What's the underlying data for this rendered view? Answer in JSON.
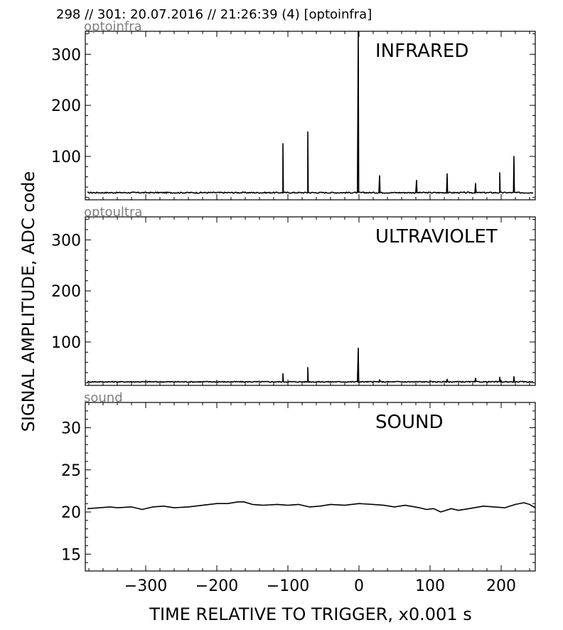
{
  "header": {
    "title": "298 // 301:   20.07.2016 // 21:26:39 (4)  [optoinfra]"
  },
  "colors": {
    "trace": "#000000",
    "channel_label": "#808080",
    "frame": "#000000"
  },
  "chart_data": [
    {
      "type": "line",
      "channel": "optoinfra",
      "panel_label": "INFRARED",
      "xlim": [
        -385,
        248
      ],
      "ylim": [
        15,
        345
      ],
      "yticks": [
        100,
        200,
        300
      ],
      "baseline": 29,
      "noise": 1.2,
      "grid": false,
      "spikes": [
        {
          "x": -107,
          "y": 125
        },
        {
          "x": -72,
          "y": 148
        },
        {
          "x": -1,
          "y": 345
        },
        {
          "x": 29,
          "y": 62
        },
        {
          "x": 81,
          "y": 53
        },
        {
          "x": 124,
          "y": 66
        },
        {
          "x": 164,
          "y": 47
        },
        {
          "x": 198,
          "y": 68
        },
        {
          "x": 218,
          "y": 100
        }
      ]
    },
    {
      "type": "line",
      "channel": "optoultra",
      "panel_label": "ULTRAVIOLET",
      "xlim": [
        -385,
        248
      ],
      "ylim": [
        15,
        345
      ],
      "yticks": [
        100,
        200,
        300
      ],
      "baseline": 22,
      "noise": 1.0,
      "grid": false,
      "spikes": [
        {
          "x": -107,
          "y": 38
        },
        {
          "x": -72,
          "y": 50
        },
        {
          "x": -1,
          "y": 88
        },
        {
          "x": 29,
          "y": 26
        },
        {
          "x": 124,
          "y": 27
        },
        {
          "x": 164,
          "y": 29
        },
        {
          "x": 198,
          "y": 31
        },
        {
          "x": 218,
          "y": 32
        }
      ]
    },
    {
      "type": "line",
      "channel": "sound",
      "panel_label": "SOUND",
      "xlim": [
        -385,
        248
      ],
      "ylim": [
        13,
        33
      ],
      "yticks": [
        15,
        20,
        25,
        30
      ],
      "grid": false,
      "x": [
        -382,
        -365,
        -350,
        -340,
        -320,
        -305,
        -290,
        -275,
        -260,
        -240,
        -220,
        -200,
        -185,
        -170,
        -162,
        -150,
        -135,
        -115,
        -100,
        -85,
        -70,
        -55,
        -40,
        -20,
        0,
        20,
        35,
        50,
        65,
        85,
        95,
        105,
        115,
        130,
        140,
        155,
        175,
        190,
        205,
        220,
        232,
        240,
        248
      ],
      "y": [
        20.4,
        20.5,
        20.6,
        20.5,
        20.6,
        20.3,
        20.6,
        20.7,
        20.5,
        20.6,
        20.8,
        21.0,
        21.0,
        21.2,
        21.2,
        20.9,
        20.8,
        20.9,
        20.8,
        20.9,
        20.6,
        20.7,
        20.9,
        20.8,
        21.0,
        20.9,
        20.8,
        20.6,
        20.8,
        20.5,
        20.3,
        20.4,
        20.0,
        20.4,
        20.2,
        20.4,
        20.7,
        20.6,
        20.5,
        20.9,
        21.1,
        20.9,
        20.5
      ]
    }
  ],
  "axes": {
    "xlabel": "TIME RELATIVE TO TRIGGER,   x0.001 s",
    "ylabel": "SIGNAL AMPLITUDE,  ADC code",
    "xticks": [
      -300,
      -200,
      -100,
      0,
      100,
      200
    ]
  }
}
